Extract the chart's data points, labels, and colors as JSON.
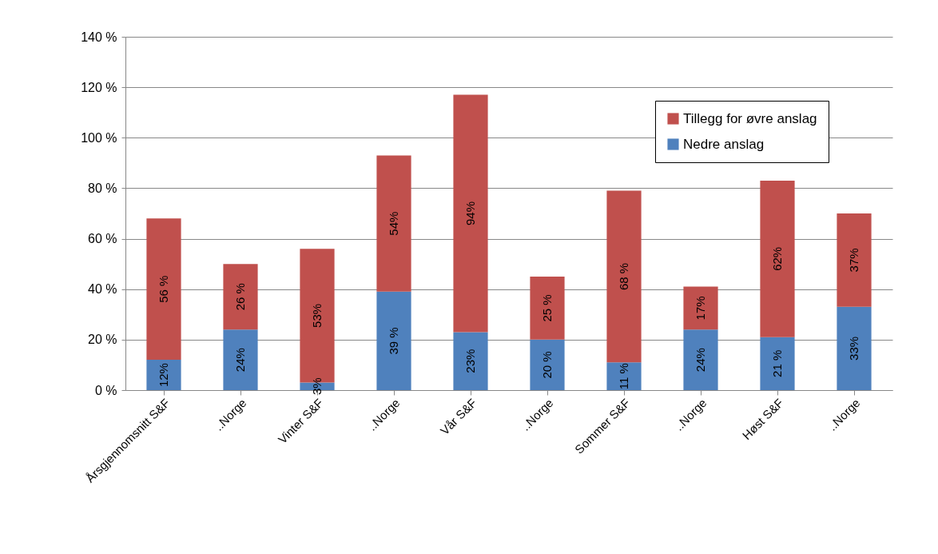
{
  "chart_data": {
    "type": "bar",
    "stacked": true,
    "categories": [
      "Årsgjennomsnitt S&F",
      "..Norge",
      "Vinter S&F",
      "..Norge",
      "Vår S&F",
      "..Norge",
      "Sommer S&F",
      "..Norge",
      "Høst S&F",
      "..Norge"
    ],
    "series": [
      {
        "name": "Nedre anslag",
        "color": "#4f81bd",
        "values": [
          12,
          24,
          3,
          39,
          23,
          20,
          11,
          24,
          21,
          33
        ],
        "value_labels": [
          "12%",
          "24%",
          "3%",
          "39 %",
          "23%",
          "20 %",
          "11 %",
          "24%",
          "21 %",
          "33%"
        ]
      },
      {
        "name": "Tillegg for øvre anslag",
        "color": "#c0504d",
        "values": [
          56,
          26,
          53,
          54,
          94,
          25,
          68,
          17,
          62,
          37
        ],
        "value_labels": [
          "56 %",
          "26 %",
          "53%",
          "54%",
          "94%",
          "25 %",
          "68 %",
          "17%",
          "62%",
          "37%"
        ]
      }
    ],
    "ylim": [
      0,
      140
    ],
    "yticks": [
      {
        "value": 0,
        "label": "0 %"
      },
      {
        "value": 20,
        "label": "20 %"
      },
      {
        "value": 40,
        "label": "40 %"
      },
      {
        "value": 60,
        "label": "60 %"
      },
      {
        "value": 80,
        "label": "80 %"
      },
      {
        "value": 100,
        "label": "100 %"
      },
      {
        "value": 120,
        "label": "120 %"
      },
      {
        "value": 140,
        "label": "140 %"
      }
    ],
    "grid": "y",
    "legend": "top right"
  }
}
